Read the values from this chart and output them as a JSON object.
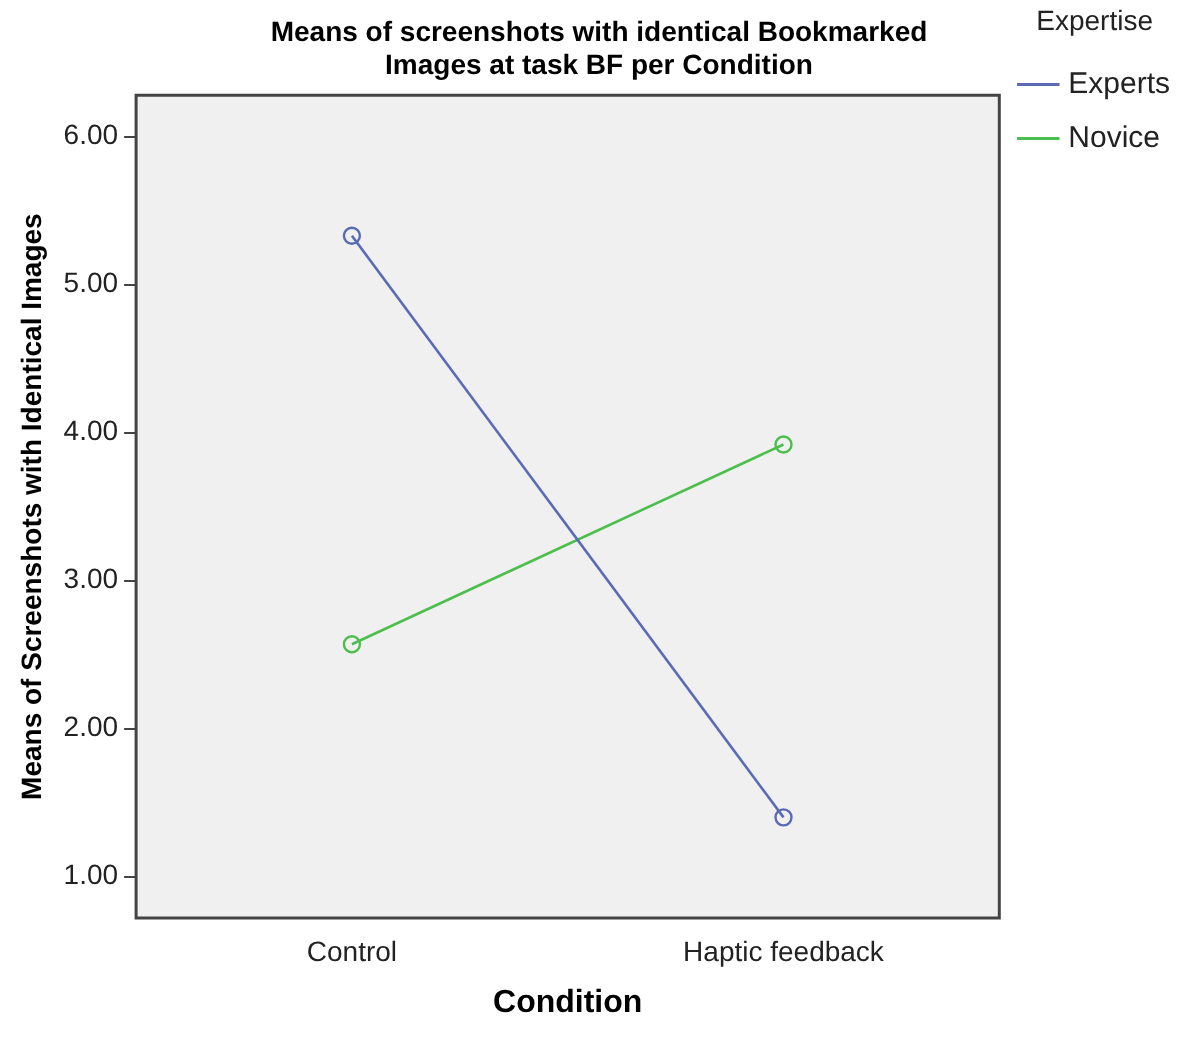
{
  "chart_data": {
    "type": "line",
    "title": "Means of screenshots with identical Bookmarked Images at task BF per Condition",
    "xlabel": "Condition",
    "ylabel": "Means of Screenshots with Identical Images",
    "legend_title": "Expertise",
    "categories": [
      "Control",
      "Haptic feedback"
    ],
    "series": [
      {
        "name": "Experts",
        "color": "#5a6ab4",
        "values": [
          5.33,
          1.4
        ]
      },
      {
        "name": "Novice",
        "color": "#4cbe4c",
        "values": [
          2.57,
          3.92
        ]
      }
    ],
    "ylim": [
      0.72,
      6.28
    ],
    "yticks": [
      {
        "value": 1,
        "label": "1.00"
      },
      {
        "value": 2,
        "label": "2.00"
      },
      {
        "value": 3,
        "label": "3.00"
      },
      {
        "value": 4,
        "label": "4.00"
      },
      {
        "value": 5,
        "label": "5.00"
      },
      {
        "value": 6,
        "label": "6.00"
      }
    ],
    "grid": false,
    "legend": "top right",
    "marker": "circle",
    "line_style": "solid"
  }
}
